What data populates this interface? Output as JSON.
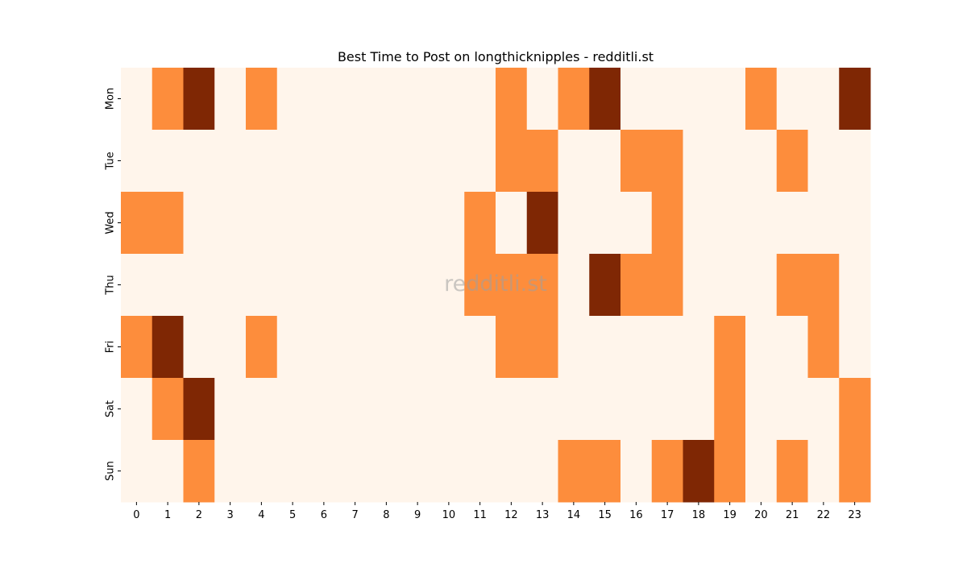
{
  "chart_data": {
    "type": "heatmap",
    "title": "Best Time to Post on longthicknipples - redditli.st",
    "watermark": "redditli.st",
    "x_categories": [
      "0",
      "1",
      "2",
      "3",
      "4",
      "5",
      "6",
      "7",
      "8",
      "9",
      "10",
      "11",
      "12",
      "13",
      "14",
      "15",
      "16",
      "17",
      "18",
      "19",
      "20",
      "21",
      "22",
      "23"
    ],
    "y_categories": [
      "Mon",
      "Tue",
      "Wed",
      "Thu",
      "Fri",
      "Sat",
      "Sun"
    ],
    "values": [
      [
        0,
        1,
        2,
        0,
        1,
        0,
        0,
        0,
        0,
        0,
        0,
        0,
        1,
        0,
        1,
        2,
        0,
        0,
        0,
        0,
        1,
        0,
        0,
        2
      ],
      [
        0,
        0,
        0,
        0,
        0,
        0,
        0,
        0,
        0,
        0,
        0,
        0,
        1,
        1,
        0,
        0,
        1,
        1,
        0,
        0,
        0,
        1,
        0,
        0
      ],
      [
        1,
        1,
        0,
        0,
        0,
        0,
        0,
        0,
        0,
        0,
        0,
        1,
        0,
        2,
        0,
        0,
        0,
        1,
        0,
        0,
        0,
        0,
        0,
        0
      ],
      [
        0,
        0,
        0,
        0,
        0,
        0,
        0,
        0,
        0,
        0,
        0,
        1,
        1,
        1,
        0,
        2,
        1,
        1,
        0,
        0,
        0,
        1,
        1,
        0
      ],
      [
        1,
        2,
        0,
        0,
        1,
        0,
        0,
        0,
        0,
        0,
        0,
        0,
        1,
        1,
        0,
        0,
        0,
        0,
        0,
        1,
        0,
        0,
        1,
        0
      ],
      [
        0,
        1,
        2,
        0,
        0,
        0,
        0,
        0,
        0,
        0,
        0,
        0,
        0,
        0,
        0,
        0,
        0,
        0,
        0,
        1,
        0,
        0,
        0,
        1
      ],
      [
        0,
        0,
        1,
        0,
        0,
        0,
        0,
        0,
        0,
        0,
        0,
        0,
        0,
        0,
        1,
        1,
        0,
        1,
        2,
        1,
        0,
        1,
        0,
        1
      ]
    ],
    "value_range": [
      0,
      2
    ],
    "colormap": "Oranges",
    "colors": [
      "#fff5eb",
      "#fd8d3c",
      "#7f2704"
    ],
    "grid": false,
    "colorbar": false,
    "xlabel": "",
    "ylabel": ""
  }
}
